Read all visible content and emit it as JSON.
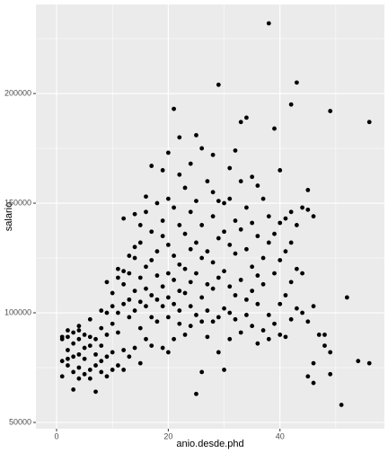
{
  "chart_data": {
    "type": "scatter",
    "x_label": "anio.desde.phd",
    "y_label": "salario",
    "color": "#000000",
    "grid": true,
    "xlim": [
      -3.7,
      58.7
    ],
    "xticks": [
      0,
      20,
      40
    ],
    "ylim": [
      47131,
      240600
    ],
    "yticks": [
      50000,
      100000,
      150000,
      200000
    ],
    "x": [
      1,
      1,
      1,
      1,
      2,
      2,
      2,
      2,
      2,
      3,
      3,
      3,
      3,
      3,
      4,
      4,
      4,
      4,
      4,
      4,
      5,
      5,
      5,
      5,
      6,
      6,
      6,
      6,
      6,
      7,
      7,
      7,
      7,
      8,
      8,
      8,
      8,
      8,
      9,
      9,
      9,
      9,
      9,
      10,
      10,
      10,
      10,
      10,
      11,
      11,
      11,
      11,
      11,
      12,
      12,
      12,
      12,
      12,
      12,
      13,
      13,
      13,
      13,
      13,
      14,
      14,
      14,
      14,
      14,
      14,
      15,
      15,
      15,
      15,
      15,
      15,
      16,
      16,
      16,
      16,
      16,
      16,
      17,
      17,
      17,
      17,
      17,
      17,
      18,
      18,
      18,
      18,
      18,
      19,
      19,
      19,
      19,
      19,
      19,
      20,
      20,
      20,
      20,
      20,
      20,
      20,
      21,
      21,
      21,
      21,
      21,
      21,
      22,
      22,
      22,
      22,
      22,
      22,
      22,
      23,
      23,
      23,
      23,
      23,
      24,
      24,
      24,
      24,
      24,
      24,
      25,
      25,
      25,
      25,
      25,
      25,
      26,
      26,
      26,
      26,
      26,
      26,
      27,
      27,
      27,
      27,
      27,
      28,
      28,
      28,
      28,
      28,
      28,
      29,
      29,
      29,
      29,
      29,
      29,
      30,
      30,
      30,
      30,
      30,
      31,
      31,
      31,
      31,
      31,
      31,
      32,
      32,
      32,
      32,
      32,
      33,
      33,
      33,
      33,
      33,
      34,
      34,
      34,
      34,
      34,
      35,
      35,
      35,
      35,
      35,
      36,
      36,
      36,
      36,
      36,
      37,
      37,
      37,
      37,
      38,
      38,
      38,
      38,
      38,
      39,
      39,
      39,
      39,
      40,
      40,
      40,
      40,
      40,
      41,
      41,
      41,
      41,
      42,
      42,
      42,
      42,
      42,
      43,
      43,
      43,
      43,
      44,
      44,
      44,
      45,
      45,
      45,
      45,
      46,
      46,
      46,
      46,
      47,
      48,
      48,
      49,
      49,
      49,
      51,
      52,
      54,
      56,
      56
    ],
    "values": [
      71000,
      78000,
      88000,
      89000,
      76000,
      79000,
      83000,
      89000,
      92000,
      65000,
      73000,
      80000,
      86000,
      91000,
      70000,
      75000,
      81000,
      88000,
      92000,
      94000,
      72000,
      79000,
      84000,
      90000,
      70000,
      74000,
      85000,
      89000,
      97000,
      64000,
      76000,
      81000,
      88000,
      73000,
      78000,
      85000,
      93000,
      101000,
      71000,
      80000,
      90000,
      100000,
      114000,
      74000,
      82000,
      95000,
      103000,
      109000,
      76000,
      91000,
      100000,
      116000,
      120000,
      74000,
      83000,
      104000,
      113000,
      119000,
      143000,
      80000,
      98000,
      106000,
      118000,
      126000,
      84000,
      101000,
      110000,
      125000,
      130000,
      145000,
      77000,
      93000,
      105000,
      116000,
      132000,
      140000,
      88000,
      103000,
      111000,
      121000,
      146000,
      153000,
      85000,
      98000,
      108000,
      124000,
      137000,
      167000,
      96000,
      106000,
      117000,
      128000,
      150000,
      84000,
      103000,
      112000,
      135000,
      142000,
      165000,
      82000,
      98000,
      107000,
      118000,
      131000,
      152000,
      173000,
      88000,
      104000,
      115000,
      126000,
      148000,
      193000,
      95000,
      101000,
      110000,
      122000,
      140000,
      163000,
      180000,
      90000,
      109000,
      120000,
      136000,
      157000,
      94000,
      103000,
      114000,
      129000,
      146000,
      168000,
      63000,
      99000,
      118000,
      132000,
      151000,
      181000,
      73000,
      96000,
      107000,
      125000,
      140000,
      175000,
      89000,
      101000,
      113000,
      128000,
      160000,
      96000,
      111000,
      123000,
      144000,
      155000,
      172000,
      82000,
      98000,
      116000,
      134000,
      151000,
      204000,
      74000,
      102000,
      119000,
      137000,
      150000,
      88000,
      100000,
      112000,
      131000,
      152000,
      166000,
      97000,
      108000,
      127000,
      142000,
      174000,
      91000,
      115000,
      138000,
      160000,
      187000,
      99000,
      106000,
      129000,
      148000,
      189000,
      94000,
      110000,
      121000,
      141000,
      162000,
      86000,
      104000,
      117000,
      135000,
      158000,
      92000,
      113000,
      125000,
      152000,
      88000,
      99000,
      132000,
      144000,
      232000,
      95000,
      118000,
      136000,
      184000,
      90000,
      104000,
      124000,
      141000,
      165000,
      89000,
      108000,
      128000,
      143000,
      97000,
      114000,
      132000,
      146000,
      195000,
      102000,
      120000,
      140000,
      205000,
      100000,
      118000,
      148000,
      71000,
      96000,
      147000,
      156000,
      68000,
      77000,
      103000,
      144000,
      90000,
      85000,
      90000,
      72000,
      82000,
      192000,
      58000,
      107000,
      78000,
      77000,
      187000
    ]
  }
}
